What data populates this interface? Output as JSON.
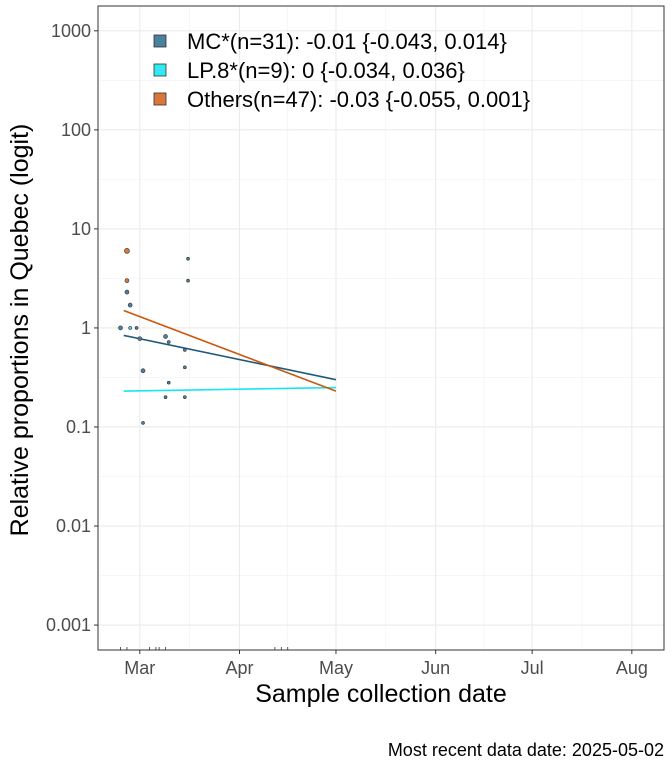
{
  "chart_data": {
    "type": "scatter",
    "ylabel": "Relative proportions in Quebec (logit)",
    "xlabel": "Sample collection date",
    "y_scale": "log10",
    "ylim": [
      0.00056,
      1780
    ],
    "y_ticks": [
      {
        "value": 0.001,
        "label": "0.001"
      },
      {
        "value": 0.01,
        "label": "0.01"
      },
      {
        "value": 0.1,
        "label": "0.1"
      },
      {
        "value": 1,
        "label": "1"
      },
      {
        "value": 10,
        "label": "10"
      },
      {
        "value": 100,
        "label": "100"
      },
      {
        "value": 1000,
        "label": "1000"
      }
    ],
    "xlim": [
      "2025-02-16",
      "2025-08-11"
    ],
    "x_ticks": [
      {
        "value": "2025-03-01",
        "label": "Mar"
      },
      {
        "value": "2025-04-01",
        "label": "Apr"
      },
      {
        "value": "2025-05-01",
        "label": "May"
      },
      {
        "value": "2025-06-01",
        "label": "Jun"
      },
      {
        "value": "2025-07-01",
        "label": "Jul"
      },
      {
        "value": "2025-08-01",
        "label": "Aug"
      }
    ],
    "grid": true,
    "legend_position": "top-left",
    "series": [
      {
        "name": "MC*(n=31): -0.01 {-0.043, 0.014}",
        "color": "#1f5a7a",
        "fill": "#4d7f9e",
        "trend": [
          {
            "x": "2025-02-24",
            "y": 0.84
          },
          {
            "x": "2025-05-01",
            "y": 0.3
          }
        ],
        "points": [
          {
            "x": "2025-02-23",
            "y": 1.0,
            "s": 2
          },
          {
            "x": "2025-02-25",
            "y": 2.3,
            "s": 2
          },
          {
            "x": "2025-02-26",
            "y": 1.7,
            "s": 2
          },
          {
            "x": "2025-02-28",
            "y": 1.0,
            "s": 1.5
          },
          {
            "x": "2025-03-01",
            "y": 0.78,
            "s": 2
          },
          {
            "x": "2025-03-02",
            "y": 0.37,
            "s": 2
          },
          {
            "x": "2025-03-02",
            "y": 0.11,
            "s": 1.5
          },
          {
            "x": "2025-03-09",
            "y": 0.82,
            "s": 2
          },
          {
            "x": "2025-03-09",
            "y": 0.2,
            "s": 1.5
          },
          {
            "x": "2025-03-10",
            "y": 0.28,
            "s": 1.5
          },
          {
            "x": "2025-03-10",
            "y": 0.72,
            "s": 1.5
          },
          {
            "x": "2025-03-15",
            "y": 0.6,
            "s": 1.5
          },
          {
            "x": "2025-03-15",
            "y": 0.4,
            "s": 1.5
          },
          {
            "x": "2025-03-15",
            "y": 0.2,
            "s": 1.5
          },
          {
            "x": "2025-03-16",
            "y": 5.0,
            "s": 1.5
          },
          {
            "x": "2025-03-16",
            "y": 3.0,
            "s": 1.5
          }
        ]
      },
      {
        "name": "LP.8*(n=9): 0 {-0.034, 0.036}",
        "color": "#19e6f2",
        "fill": "#33e8f5",
        "trend": [
          {
            "x": "2025-02-24",
            "y": 0.23
          },
          {
            "x": "2025-05-01",
            "y": 0.25
          }
        ],
        "points": [
          {
            "x": "2025-02-26",
            "y": 1.0,
            "s": 1.5
          }
        ]
      },
      {
        "name": "Others(n=47): -0.03 {-0.055, 0.001}",
        "color": "#c85a10",
        "fill": "#d9773a",
        "trend": [
          {
            "x": "2025-02-24",
            "y": 1.5
          },
          {
            "x": "2025-05-01",
            "y": 0.23
          }
        ],
        "points": [
          {
            "x": "2025-02-25",
            "y": 6.0,
            "s": 2.5
          },
          {
            "x": "2025-02-25",
            "y": 3.0,
            "s": 2
          }
        ]
      }
    ],
    "rug_x": [
      "2025-02-23",
      "2025-02-25",
      "2025-03-04",
      "2025-03-06",
      "2025-03-07",
      "2025-03-09",
      "2025-04-12",
      "2025-04-14",
      "2025-04-16"
    ],
    "caption": "Most recent data date: 2025-05-02"
  }
}
